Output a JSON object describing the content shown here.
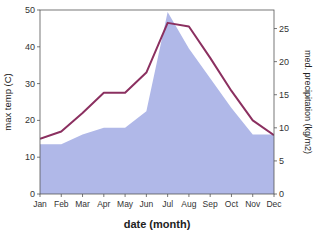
{
  "chart_data": {
    "type": "line",
    "categories": [
      "Jan",
      "Feb",
      "Mar",
      "Apr",
      "May",
      "Jun",
      "Jul",
      "Aug",
      "Sep",
      "Oct",
      "Nov",
      "Dec"
    ],
    "x_label": "date (month)",
    "y_label": "max temp (C)",
    "y2_label": "med. precipitation (kg/m2)",
    "ylim": [
      0,
      50
    ],
    "yticks": [
      0,
      10,
      20,
      30,
      40,
      50
    ],
    "y2lim": [
      0,
      27.8
    ],
    "y2ticks": [
      0,
      5,
      10,
      15,
      20,
      25
    ],
    "grid": false,
    "series": [
      {
        "type": "area",
        "axis": "y2",
        "color": "#b0b8e8",
        "values": [
          7.5,
          7.5,
          9.0,
          10.0,
          10.0,
          12.5,
          27.5,
          22.0,
          17.5,
          13.0,
          9.0,
          9.0
        ]
      },
      {
        "type": "line",
        "color": "#8b3060",
        "values": [
          15.0,
          17.0,
          22.0,
          27.5,
          27.5,
          33.0,
          46.5,
          45.5,
          37.0,
          28.0,
          20.0,
          16.0
        ]
      }
    ]
  }
}
